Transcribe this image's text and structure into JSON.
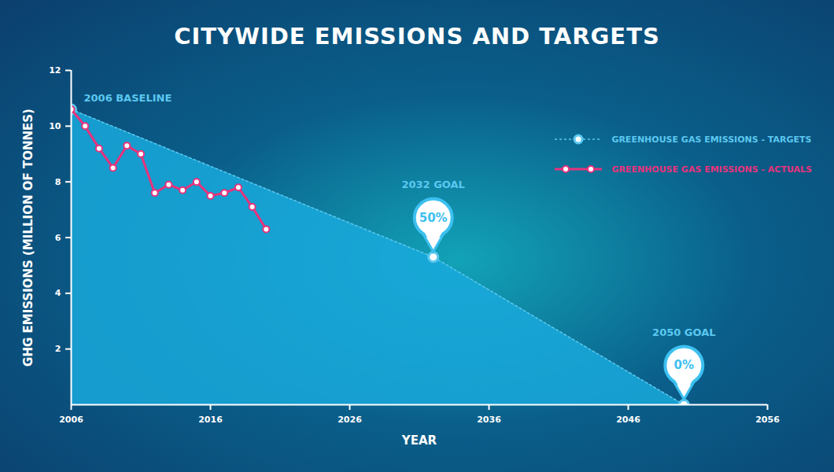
{
  "chart_data": {
    "type": "line",
    "title": "CITYWIDE EMISSIONS AND TARGETS",
    "x_label": "YEAR",
    "y_label": "GHG EMISSIONS (MILLION OF TONNES)",
    "xlim": [
      2006,
      2056
    ],
    "xticks": [
      2006,
      2016,
      2026,
      2036,
      2046,
      2056
    ],
    "ylim": [
      0,
      12
    ],
    "yticks": [
      2,
      4,
      6,
      8,
      10,
      12
    ],
    "grid": false,
    "legend": "top-right",
    "series": [
      {
        "name": "GREENHOUSE GAS EMISSIONS - TARGETS",
        "type": "area",
        "color": "#5bc8f0",
        "marker": "circle",
        "line_style": "dashed",
        "x": [
          2006,
          2032,
          2050
        ],
        "values": [
          10.6,
          5.3,
          0
        ]
      },
      {
        "name": "GREENHOUSE GAS EMISSIONS - ACTUALS",
        "type": "line",
        "color": "#e8327c",
        "marker": "circle",
        "line_style": "solid",
        "x": [
          2006,
          2007,
          2008,
          2009,
          2010,
          2011,
          2012,
          2013,
          2014,
          2015,
          2016,
          2017,
          2018,
          2019,
          2020
        ],
        "values": [
          10.6,
          10.0,
          9.2,
          8.5,
          9.3,
          9.0,
          7.6,
          7.9,
          7.7,
          8.0,
          7.5,
          7.6,
          7.8,
          7.1,
          6.3
        ]
      }
    ],
    "annotations": [
      {
        "x": 2006,
        "text": "2006 BASELINE"
      },
      {
        "x": 2032,
        "text": "2032 GOAL",
        "value_label": "50%"
      },
      {
        "x": 2050,
        "text": "2050 GOAL",
        "value_label": "0%"
      }
    ]
  }
}
